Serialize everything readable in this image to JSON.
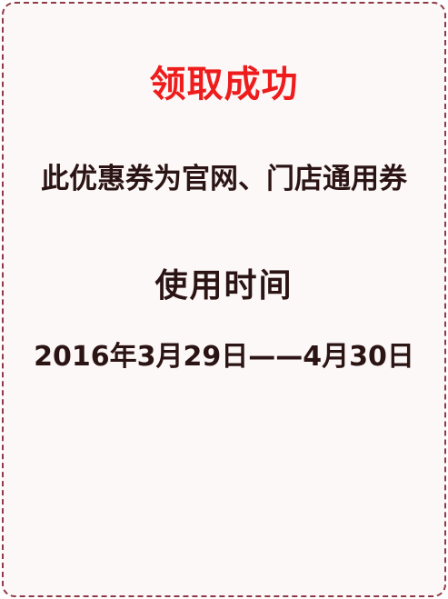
{
  "coupon": {
    "success_title": "领取成功",
    "description": "此优惠券为官网、门店通用券",
    "validity_heading": "使用时间",
    "validity_range": "2016年3月29日——4月30日"
  },
  "colors": {
    "title": "#ee1c1c",
    "text": "#2b1414",
    "border": "#8e3a48",
    "card_background": "#fcf8f7"
  }
}
